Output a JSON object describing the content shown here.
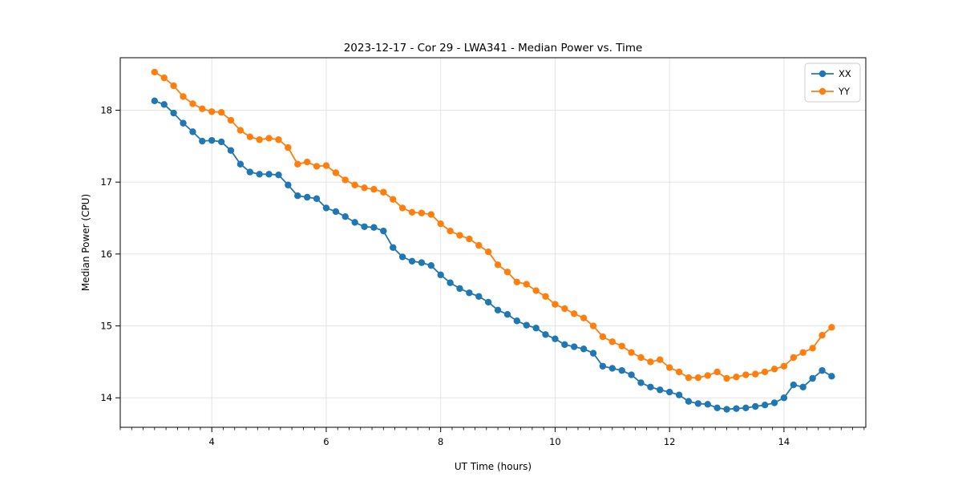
{
  "chart_data": {
    "type": "line",
    "title": "2023-12-17 - Cor 29 - LWA341 - Median Power vs. Time",
    "xlabel": "UT Time (hours)",
    "ylabel": "Median Power (CPU)",
    "x": [
      3.0,
      3.167,
      3.333,
      3.5,
      3.667,
      3.833,
      4.0,
      4.167,
      4.333,
      4.5,
      4.667,
      4.833,
      5.0,
      5.167,
      5.333,
      5.5,
      5.667,
      5.833,
      6.0,
      6.167,
      6.333,
      6.5,
      6.667,
      6.833,
      7.0,
      7.167,
      7.333,
      7.5,
      7.667,
      7.833,
      8.0,
      8.167,
      8.333,
      8.5,
      8.667,
      8.833,
      9.0,
      9.167,
      9.333,
      9.5,
      9.667,
      9.833,
      10.0,
      10.167,
      10.333,
      10.5,
      10.667,
      10.833,
      11.0,
      11.167,
      11.333,
      11.5,
      11.667,
      11.833,
      12.0,
      12.167,
      12.333,
      12.5,
      12.667,
      12.833,
      13.0,
      13.167,
      13.333,
      13.5,
      13.667,
      13.833,
      14.0,
      14.167,
      14.333,
      14.5,
      14.667,
      14.833
    ],
    "series": [
      {
        "name": "XX",
        "color": "#1f77b4",
        "values": [
          18.13,
          18.08,
          17.96,
          17.82,
          17.7,
          17.57,
          17.58,
          17.56,
          17.44,
          17.25,
          17.14,
          17.11,
          17.11,
          17.1,
          16.96,
          16.81,
          16.79,
          16.77,
          16.64,
          16.59,
          16.52,
          16.44,
          16.38,
          16.37,
          16.32,
          16.09,
          15.96,
          15.9,
          15.88,
          15.84,
          15.71,
          15.6,
          15.52,
          15.46,
          15.41,
          15.33,
          15.22,
          15.16,
          15.07,
          15.01,
          14.97,
          14.88,
          14.82,
          14.74,
          14.71,
          14.68,
          14.62,
          14.44,
          14.41,
          14.38,
          14.32,
          14.21,
          14.15,
          14.11,
          14.08,
          14.04,
          13.95,
          13.92,
          13.91,
          13.86,
          13.84,
          13.85,
          13.86,
          13.88,
          13.9,
          13.93,
          14.0,
          14.18,
          14.15,
          14.27,
          14.38,
          14.3
        ]
      },
      {
        "name": "YY",
        "color": "#ff7f0e",
        "values": [
          18.53,
          18.45,
          18.34,
          18.19,
          18.09,
          18.02,
          17.98,
          17.97,
          17.86,
          17.72,
          17.63,
          17.59,
          17.61,
          17.59,
          17.48,
          17.25,
          17.28,
          17.22,
          17.23,
          17.13,
          17.03,
          16.96,
          16.92,
          16.9,
          16.86,
          16.76,
          16.64,
          16.58,
          16.57,
          16.55,
          16.42,
          16.32,
          16.26,
          16.21,
          16.12,
          16.03,
          15.85,
          15.75,
          15.61,
          15.58,
          15.49,
          15.41,
          15.3,
          15.24,
          15.17,
          15.11,
          15.0,
          14.85,
          14.78,
          14.72,
          14.63,
          14.56,
          14.5,
          14.53,
          14.42,
          14.36,
          14.28,
          14.28,
          14.31,
          14.36,
          14.27,
          14.29,
          14.32,
          14.33,
          14.36,
          14.4,
          14.44,
          14.56,
          14.63,
          14.69,
          14.87,
          14.98
        ]
      }
    ],
    "xlim": [
      2.4,
      15.43
    ],
    "ylim": [
      13.59,
      18.73
    ],
    "xticks": [
      4,
      6,
      8,
      10,
      12,
      14
    ],
    "yticks": [
      14,
      15,
      16,
      17,
      18
    ],
    "minor_xtick_step": 0.2,
    "grid": true,
    "legend_position": "upper right"
  },
  "colors": {
    "background": "#ffffff",
    "grid": "#e0e0e0",
    "axis": "#000000"
  }
}
